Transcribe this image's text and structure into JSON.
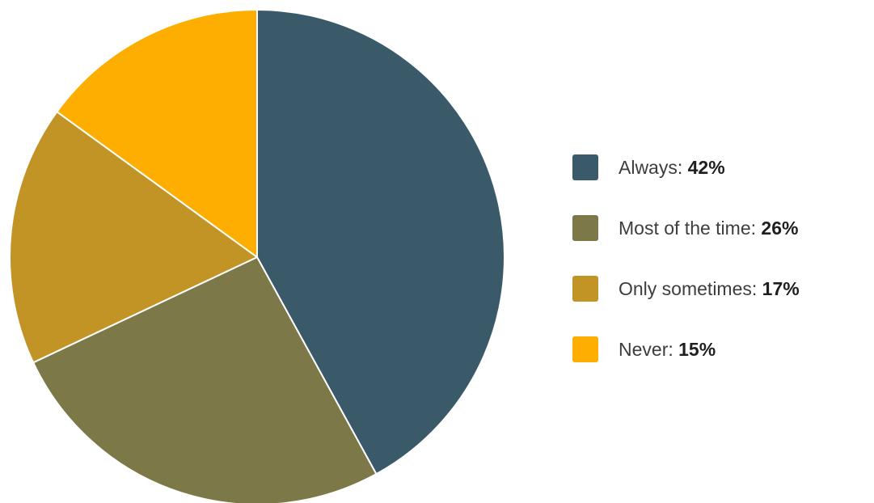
{
  "chart_data": {
    "type": "pie",
    "title": "",
    "slices": [
      {
        "label": "Always",
        "value": 42,
        "display": "42%",
        "color": "#3a5a6a"
      },
      {
        "label": "Most of the time",
        "value": 26,
        "display": "26%",
        "color": "#7c7848"
      },
      {
        "label": "Only sometimes",
        "value": 17,
        "display": "17%",
        "color": "#c29325"
      },
      {
        "label": "Never",
        "value": 15,
        "display": "15%",
        "color": "#fdae00"
      }
    ],
    "start_angle_deg": 0,
    "direction": "clockwise",
    "legend_position": "right"
  }
}
